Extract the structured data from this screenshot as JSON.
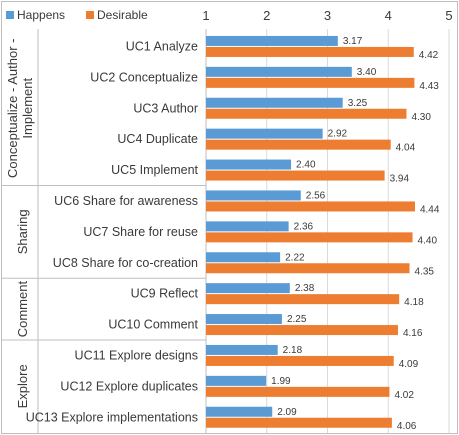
{
  "chart_data": {
    "type": "bar",
    "orientation": "horizontal",
    "xlim": [
      1,
      5
    ],
    "x_ticks": [
      "1",
      "2",
      "3",
      "4",
      "5"
    ],
    "x_tick_values": [
      1,
      2,
      3,
      4,
      5
    ],
    "x_axis_position": "top",
    "grid": true,
    "legend": {
      "placement": "top-left",
      "entries": [
        "Happens",
        "Desirable"
      ]
    },
    "colors": {
      "Happens": "#5b9bd5",
      "Desirable": "#ed7d31",
      "grid": "#d9d9d9",
      "frame": "#bfbfbf"
    },
    "groups": [
      {
        "label": "Conceptualize - Author - Implement",
        "categories": [
          "UC1 Analyze",
          "UC2 Conceptualize",
          "UC3 Author",
          "UC4 Duplicate",
          "UC5 Implement"
        ]
      },
      {
        "label": "Sharing",
        "categories": [
          "UC6 Share for awareness",
          "UC7 Share for reuse",
          "UC8 Share for co-creation"
        ]
      },
      {
        "label": "Comment",
        "categories": [
          "UC9 Reflect",
          "UC10 Comment"
        ]
      },
      {
        "label": "Explore",
        "categories": [
          "UC11 Explore designs",
          "UC12 Explore duplicates",
          "UC13 Explore implementations"
        ]
      }
    ],
    "categories": [
      "UC1 Analyze",
      "UC2 Conceptualize",
      "UC3 Author",
      "UC4 Duplicate",
      "UC5 Implement",
      "UC6 Share for awareness",
      "UC7 Share for reuse",
      "UC8 Share for co-creation",
      "UC9 Reflect",
      "UC10 Comment",
      "UC11 Explore designs",
      "UC12 Explore duplicates",
      "UC13 Explore implementations"
    ],
    "series": [
      {
        "name": "Happens",
        "values": [
          3.17,
          3.4,
          3.25,
          2.92,
          2.4,
          2.56,
          2.36,
          2.22,
          2.38,
          2.25,
          2.18,
          1.99,
          2.09
        ],
        "labels": [
          "3.17",
          "3.40",
          "3.25",
          "2.92",
          "2.40",
          "2.56",
          "2.36",
          "2.22",
          "2.38",
          "2.25",
          "2.18",
          "1.99",
          "2.09"
        ]
      },
      {
        "name": "Desirable",
        "values": [
          4.42,
          4.43,
          4.3,
          4.04,
          3.94,
          4.44,
          4.4,
          4.35,
          4.18,
          4.16,
          4.09,
          4.02,
          4.06
        ],
        "labels": [
          "4.42",
          "4.43",
          "4.30",
          "4.04",
          "3.94",
          "4.44",
          "4.40",
          "4.35",
          "4.18",
          "4.16",
          "4.09",
          "4.02",
          "4.06"
        ]
      }
    ]
  }
}
